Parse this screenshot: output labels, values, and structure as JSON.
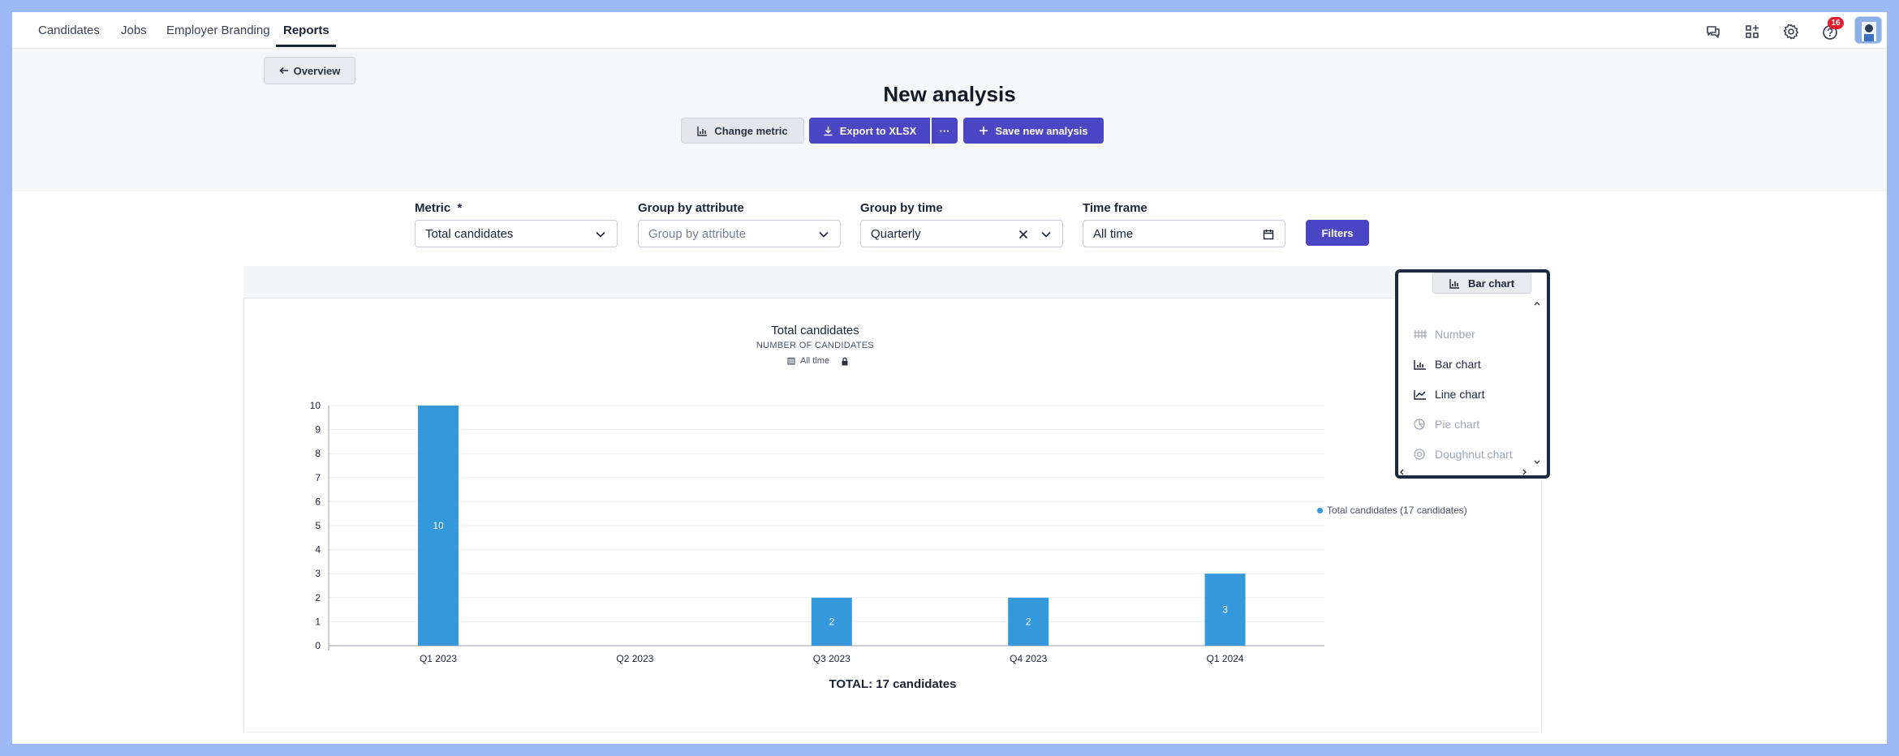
{
  "nav": {
    "items": [
      "Candidates",
      "Jobs",
      "Employer Branding",
      "Reports"
    ],
    "active": "Reports",
    "notification_count": "16"
  },
  "header": {
    "back_label": "Overview",
    "title": "New analysis",
    "change_metric_label": "Change metric",
    "export_label": "Export to XLSX",
    "more_label": "···",
    "save_label": "Save new analysis"
  },
  "filters": {
    "metric": {
      "label": "Metric",
      "required_mark": "*",
      "value": "Total candidates"
    },
    "group_attr": {
      "label": "Group by attribute",
      "placeholder": "Group by attribute"
    },
    "group_time": {
      "label": "Group by time",
      "value": "Quarterly"
    },
    "time_frame": {
      "label": "Time frame",
      "value": "All time"
    },
    "filters_label": "Filters"
  },
  "chart_data": {
    "type": "bar",
    "title": "Total candidates",
    "subtitle": "NUMBER OF CANDIDATES",
    "time_frame_tag": "All time",
    "categories": [
      "Q1 2023",
      "Q2 2023",
      "Q3 2023",
      "Q4 2023",
      "Q1 2024"
    ],
    "values": [
      10,
      0,
      2,
      2,
      3
    ],
    "ylim": [
      0,
      10
    ],
    "yticks": [
      0,
      1,
      2,
      3,
      4,
      5,
      6,
      7,
      8,
      9,
      10
    ],
    "legend": "Total candidates (17 candidates)",
    "total_label": "TOTAL: 17 candidates",
    "bar_color": "#3498db"
  },
  "chart_type_menu": {
    "current": "Bar chart",
    "options": [
      {
        "label": "Number",
        "enabled": false
      },
      {
        "label": "Bar chart",
        "enabled": true
      },
      {
        "label": "Line chart",
        "enabled": true
      },
      {
        "label": "Pie chart",
        "enabled": false
      },
      {
        "label": "Doughnut chart",
        "enabled": false
      }
    ]
  },
  "colors": {
    "primary": "#4a46c4",
    "accent_border": "#1b2a40",
    "badge": "#e11d2e"
  }
}
